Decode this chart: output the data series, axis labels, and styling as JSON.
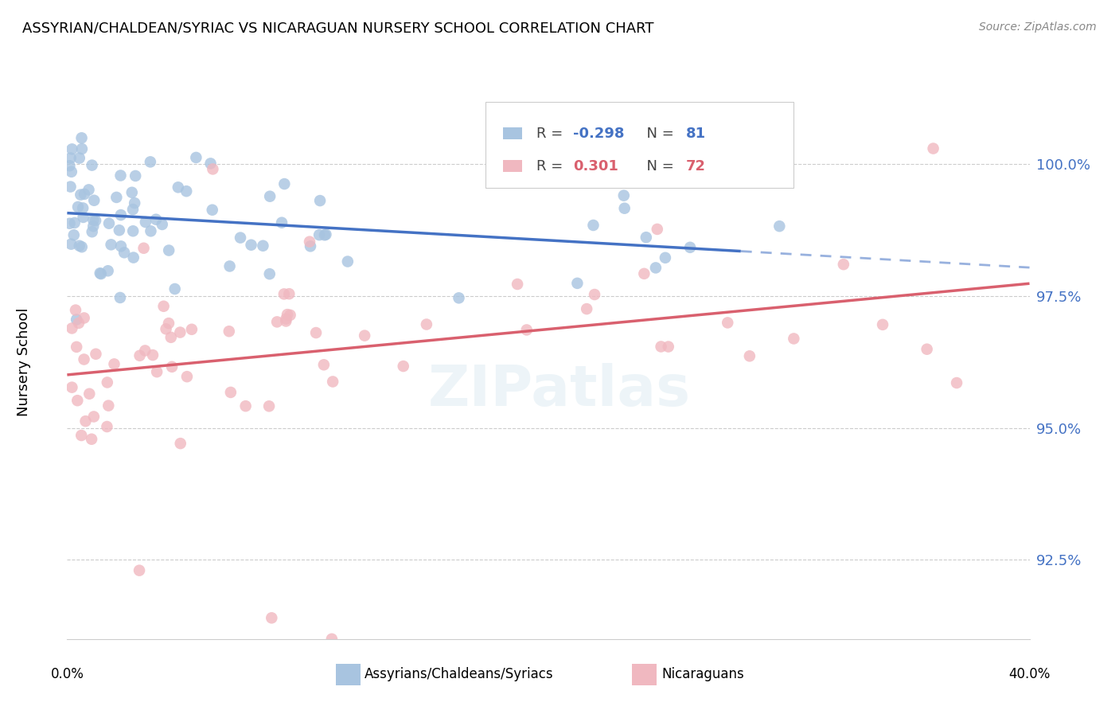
{
  "title": "ASSYRIAN/CHALDEAN/SYRIAC VS NICARAGUAN NURSERY SCHOOL CORRELATION CHART",
  "source": "Source: ZipAtlas.com",
  "ylabel": "Nursery School",
  "yticks": [
    92.5,
    95.0,
    97.5,
    100.0
  ],
  "ytick_labels": [
    "92.5%",
    "95.0%",
    "97.5%",
    "100.0%"
  ],
  "xmin": 0.0,
  "xmax": 40.0,
  "ymin": 91.0,
  "ymax": 101.5,
  "blue_R": -0.298,
  "blue_N": 81,
  "pink_R": 0.301,
  "pink_N": 72,
  "blue_line_color": "#4472c4",
  "pink_line_color": "#d9606e",
  "blue_marker_color": "#a8c4e0",
  "pink_marker_color": "#f0b8c0",
  "legend_blue_label": "Assyrians/Chaldeans/Syriacs",
  "legend_pink_label": "Nicaraguans"
}
